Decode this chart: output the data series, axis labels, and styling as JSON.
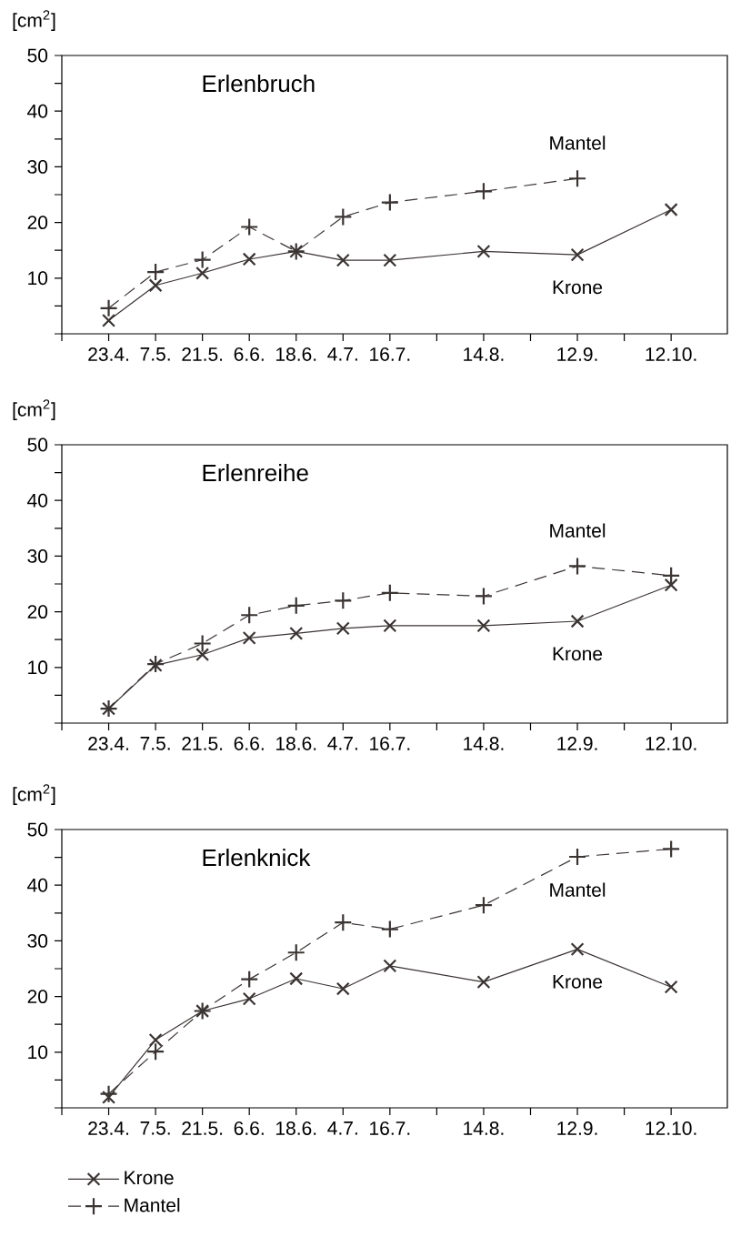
{
  "chart_data": [
    {
      "type": "line",
      "title": "Erlenbruch",
      "ylabel": "[cm$^{2}$]",
      "categories": [
        "23.4.",
        "7.5.",
        "21.5.",
        "6.6.",
        "18.6.",
        "4.7.",
        "16.7.",
        null,
        "14.8.",
        null,
        "12.9.",
        null,
        "12.10."
      ],
      "series": [
        {
          "name": "Krone",
          "color": "#3a3433",
          "marker": "cross",
          "line_style": "solid",
          "values": [
            2.4,
            8.7,
            10.9,
            13.4,
            14.8,
            13.2,
            13.2,
            null,
            14.8,
            null,
            14.2,
            null,
            22.3
          ]
        },
        {
          "name": "Mantel",
          "color": "#3a3433",
          "marker": "plus",
          "line_style": "dashed",
          "values": [
            4.6,
            11.1,
            13.3,
            19.2,
            14.8,
            21.0,
            23.6,
            null,
            25.6,
            null,
            27.9,
            null,
            null
          ]
        }
      ],
      "ylim": [
        0,
        50
      ],
      "yticks": [
        {
          "value": 0,
          "label": null
        },
        {
          "value": 5,
          "label": null
        },
        10,
        {
          "value": 15,
          "label": null
        },
        20,
        {
          "value": 25,
          "label": null
        },
        30,
        {
          "value": 35,
          "label": null
        },
        40,
        {
          "value": 45,
          "label": null
        },
        50
      ],
      "legend": false
    },
    {
      "type": "line",
      "title": "Erlenreihe",
      "ylabel": "[cm$^{2}$]",
      "categories": [
        "23.4.",
        "7.5.",
        "21.5.",
        "6.6.",
        "18.6.",
        "4.7.",
        "16.7.",
        null,
        "14.8.",
        null,
        "12.9.",
        null,
        "12.10."
      ],
      "series": [
        {
          "name": "Krone",
          "color": "#3a3433",
          "marker": "cross",
          "line_style": "solid",
          "values": [
            2.6,
            10.4,
            12.3,
            15.3,
            16.1,
            17.0,
            17.5,
            null,
            17.5,
            null,
            18.3,
            null,
            24.8
          ]
        },
        {
          "name": "Mantel",
          "color": "#3a3433",
          "marker": "plus",
          "line_style": "dashed",
          "values": [
            2.6,
            10.6,
            14.3,
            19.4,
            21.1,
            22.0,
            23.4,
            null,
            22.8,
            null,
            28.2,
            null,
            26.5
          ]
        }
      ],
      "ylim": [
        0,
        50
      ],
      "yticks": [
        {
          "value": 0,
          "label": null
        },
        {
          "value": 5,
          "label": null
        },
        10,
        {
          "value": 15,
          "label": null
        },
        20,
        {
          "value": 25,
          "label": null
        },
        30,
        {
          "value": 35,
          "label": null
        },
        40,
        {
          "value": 45,
          "label": null
        },
        50
      ],
      "legend": false
    },
    {
      "type": "line",
      "title": "Erlenknick",
      "ylabel": "[cm$^{2}$]",
      "categories": [
        "23.4.",
        "7.5.",
        "21.5.",
        "6.6.",
        "18.6.",
        "4.7.",
        "16.7.",
        null,
        "14.8.",
        null,
        "12.9.",
        null,
        "12.10."
      ],
      "series": [
        {
          "name": "Krone",
          "color": "#3a3433",
          "marker": "cross",
          "line_style": "solid",
          "values": [
            1.9,
            12.2,
            17.4,
            19.6,
            23.2,
            21.4,
            25.5,
            null,
            22.6,
            null,
            28.5,
            null,
            21.7
          ]
        },
        {
          "name": "Mantel",
          "color": "#3a3433",
          "marker": "plus",
          "line_style": "dashed",
          "values": [
            2.5,
            10.1,
            17.4,
            23.1,
            27.9,
            33.3,
            32.1,
            null,
            36.4,
            null,
            45.1,
            null,
            46.5
          ]
        }
      ],
      "ylim": [
        0,
        50
      ],
      "yticks": [
        {
          "value": 0,
          "label": null
        },
        {
          "value": 5,
          "label": null
        },
        10,
        {
          "value": 15,
          "label": null
        },
        20,
        {
          "value": 25,
          "label": null
        },
        30,
        {
          "value": 35,
          "label": null
        },
        40,
        {
          "value": 45,
          "label": null
        },
        50
      ],
      "legend": "bottom left"
    }
  ]
}
